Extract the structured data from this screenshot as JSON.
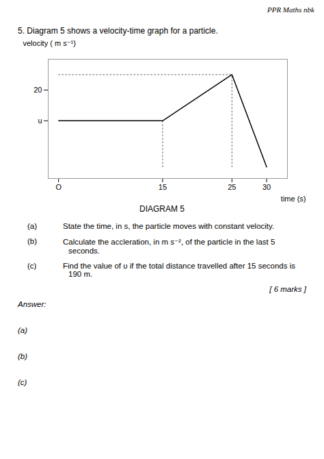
{
  "chart_data": {
    "type": "line",
    "header": "PPR Maths nbk",
    "title": "5. Diagram  5 shows a velocity-time graph for a particle.",
    "caption": "DIAGRAM 5",
    "x_label": "time (s)",
    "y_label": "velocity ( m s⁻¹)",
    "x": [
      0,
      15,
      25,
      30
    ],
    "values": [
      12,
      12,
      24,
      0
    ],
    "color": "#000000",
    "xlim": [
      -1.5,
      33
    ],
    "ylim": [
      -3,
      28
    ],
    "xticks": [
      {
        "value": 0,
        "label": "O"
      },
      15,
      25,
      30
    ],
    "yticks": [
      {
        "value": 12,
        "label": "u"
      },
      20
    ],
    "grid": false,
    "guides": [
      {
        "x": [
          15,
          15
        ],
        "y": [
          0,
          12
        ],
        "color": "#666666",
        "line_style": "dotted"
      },
      {
        "x": [
          25,
          25
        ],
        "y": [
          0,
          24
        ],
        "color": "#666666",
        "line_style": "dotted"
      },
      {
        "x": [
          0,
          25
        ],
        "y": [
          24,
          24
        ],
        "color": "#666666",
        "line_style": "dotted"
      }
    ],
    "questions": [
      {
        "label": "(a)",
        "lines": [
          "State the time, in s, the particle moves with constant velocity."
        ]
      },
      {
        "label": "(b)",
        "lines": [
          "Calculate the accleration, in  m s⁻², of the particle in the last 5",
          "seconds."
        ]
      },
      {
        "label": "(c)",
        "lines": [
          "Find the value of  υ if the total distance travelled after 15 seconds is",
          "190 m."
        ]
      }
    ],
    "marks": "[ 6 marks ]",
    "answer_label": "Answer:",
    "answers": [
      "(a)",
      "(b)",
      "(c)"
    ]
  }
}
